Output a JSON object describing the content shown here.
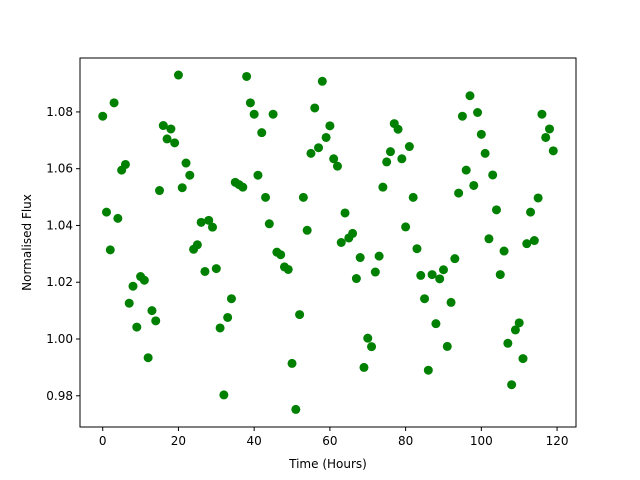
{
  "chart_data": {
    "type": "scatter",
    "title": "",
    "xlabel": "Time (Hours)",
    "ylabel": "Normalised Flux",
    "xlim": [
      -6,
      125
    ],
    "ylim": [
      0.969,
      1.099
    ],
    "xticks": [
      0,
      20,
      40,
      60,
      80,
      100,
      120
    ],
    "yticks": [
      0.98,
      1.0,
      1.02,
      1.04,
      1.06,
      1.08
    ],
    "ytick_labels": [
      "0.98",
      "1.00",
      "1.02",
      "1.04",
      "1.06",
      "1.08"
    ],
    "grid": false,
    "marker_color": "#008000",
    "x": [
      0,
      1,
      2,
      3,
      4,
      5,
      6,
      7,
      8,
      9,
      10,
      11,
      12,
      13,
      14,
      15,
      16,
      17,
      18,
      19,
      20,
      21,
      22,
      23,
      24,
      25,
      26,
      27,
      28,
      29,
      30,
      31,
      32,
      33,
      34,
      35,
      36,
      37,
      38,
      39,
      40,
      41,
      42,
      43,
      44,
      45,
      46,
      47,
      48,
      49,
      50,
      51,
      52,
      53,
      54,
      55,
      56,
      57,
      58,
      59,
      60,
      61,
      62,
      63,
      64,
      65,
      66,
      67,
      68,
      69,
      70,
      71,
      72,
      73,
      74,
      75,
      76,
      77,
      78,
      79,
      80,
      81,
      82,
      83,
      84,
      85,
      86,
      87,
      88,
      89,
      90,
      91,
      92,
      93,
      94,
      95,
      96,
      97,
      98,
      99,
      100,
      101,
      102,
      103,
      104,
      105,
      106,
      107,
      108,
      109,
      110,
      111,
      112,
      113,
      114,
      115,
      116,
      117,
      118,
      119
    ],
    "y": [
      1.0785,
      1.0447,
      1.0314,
      1.0832,
      1.0425,
      1.0595,
      1.0615,
      1.0126,
      1.0186,
      1.0042,
      1.022,
      1.0207,
      0.9934,
      1.01,
      1.0064,
      1.0523,
      1.0752,
      1.0705,
      1.074,
      1.0691,
      1.093,
      1.0533,
      1.062,
      1.0577,
      1.0316,
      1.0332,
      1.0411,
      1.0238,
      1.0418,
      1.0394,
      1.0248,
      1.0039,
      0.9803,
      1.0076,
      1.0142,
      1.0552,
      1.0544,
      1.0535,
      1.0925,
      1.0832,
      1.0792,
      1.0577,
      1.0727,
      1.0499,
      1.0406,
      1.0792,
      1.0306,
      1.0297,
      1.0254,
      1.0245,
      0.9914,
      0.9752,
      1.0086,
      1.0499,
      1.0383,
      1.0654,
      1.0814,
      1.0674,
      1.0908,
      1.071,
      1.0751,
      1.0635,
      1.0609,
      1.034,
      1.0444,
      1.0356,
      1.0372,
      1.0213,
      1.0287,
      0.99,
      1.0003,
      0.9973,
      1.0236,
      1.0292,
      1.0535,
      1.0624,
      1.066,
      1.0759,
      1.0739,
      1.0635,
      1.0395,
      1.0678,
      1.0499,
      1.0318,
      1.0224,
      1.0142,
      0.989,
      1.0227,
      1.0054,
      1.0212,
      1.0244,
      0.9974,
      1.0129,
      1.0283,
      1.0514,
      1.0785,
      1.0595,
      1.0857,
      1.0541,
      1.0798,
      1.0721,
      1.0654,
      1.0353,
      1.0578,
      1.0455,
      1.0227,
      1.031,
      0.9985,
      0.9839,
      1.0032,
      1.0057,
      0.9931,
      1.0336,
      1.0447,
      1.0347,
      1.0497,
      1.0792,
      1.071,
      1.074,
      1.0663
    ]
  }
}
